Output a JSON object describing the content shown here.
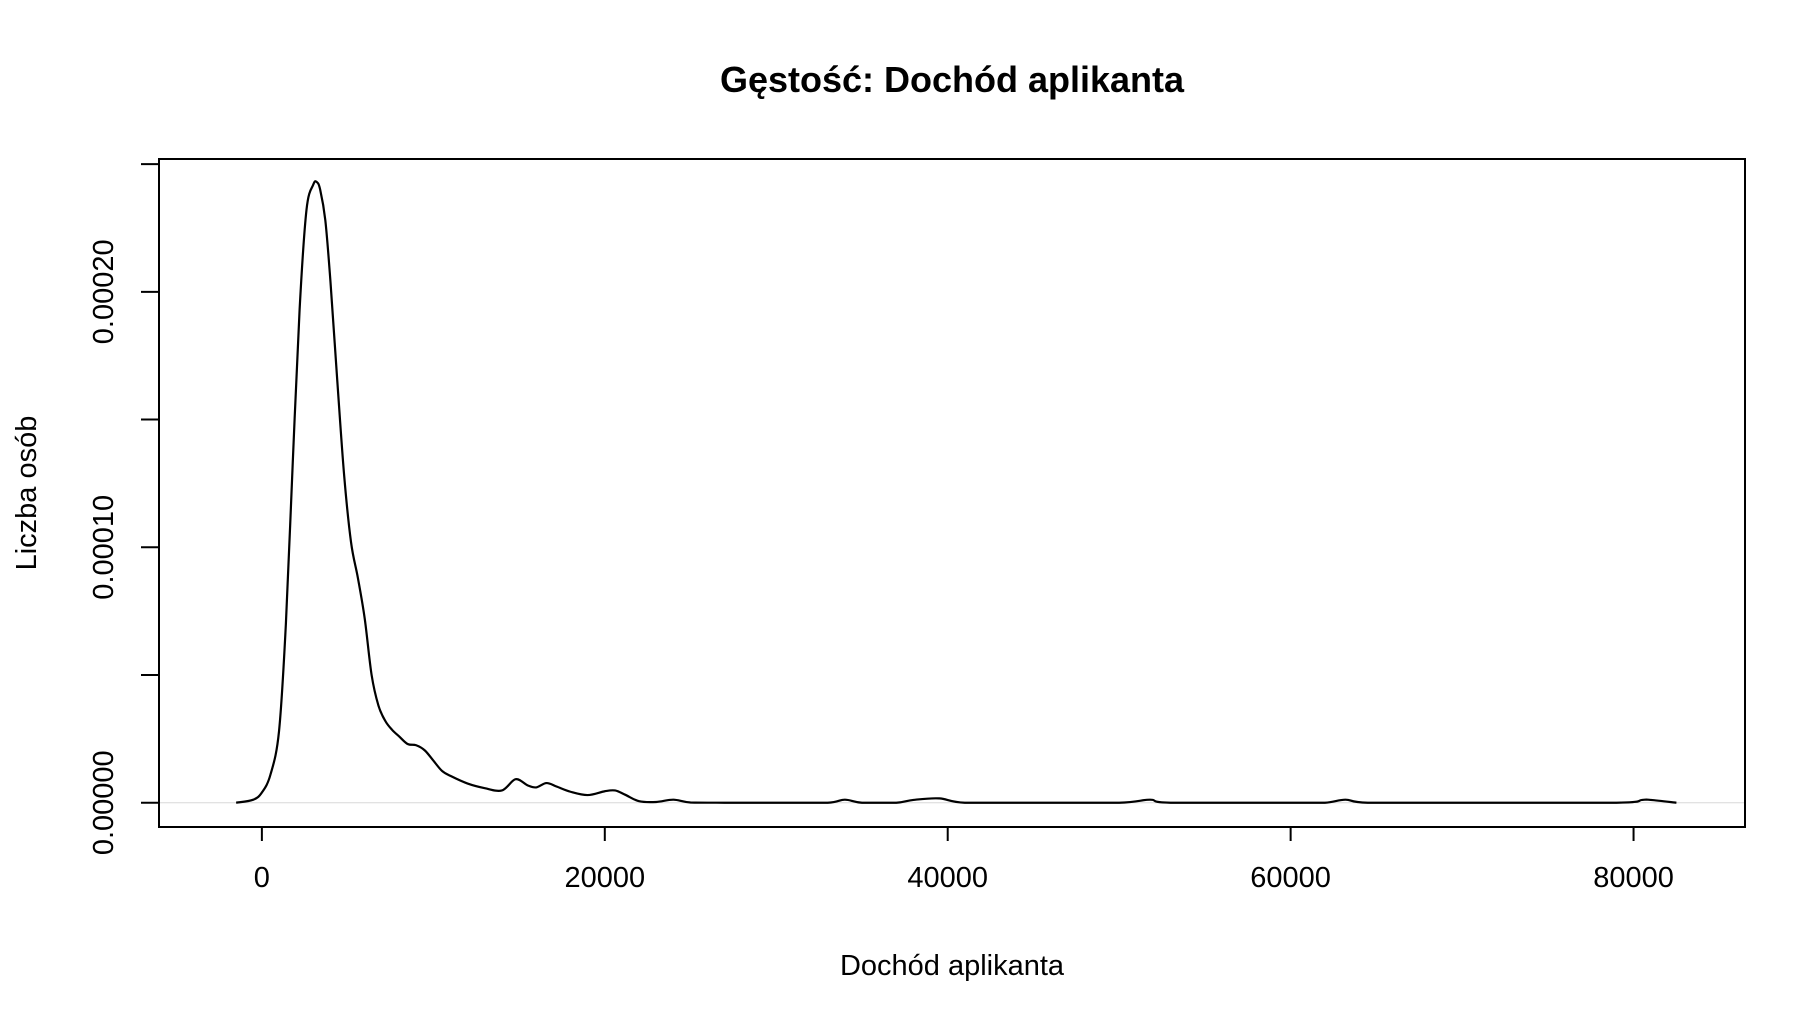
{
  "chart_data": {
    "type": "line",
    "title": "Gęstość:  Dochód aplikanta",
    "xlabel": "Dochód aplikanta",
    "ylabel": "Liczba osób",
    "xlim": [
      -6000,
      86500
    ],
    "ylim": [
      -9.5e-06,
      0.000252
    ],
    "x_ticks": [
      {
        "value": 0,
        "label": "0"
      },
      {
        "value": 20000,
        "label": "20000"
      },
      {
        "value": 40000,
        "label": "40000"
      },
      {
        "value": 60000,
        "label": "60000"
      },
      {
        "value": 80000,
        "label": "80000"
      }
    ],
    "y_ticks": [
      {
        "value": 0,
        "label": "0.00000"
      },
      {
        "value": 5e-05,
        "label": ""
      },
      {
        "value": 0.0001,
        "label": "0.00010"
      },
      {
        "value": 0.00015,
        "label": ""
      },
      {
        "value": 0.0002,
        "label": "0.00020"
      },
      {
        "value": 0.00025,
        "label": ""
      }
    ],
    "zero_reference_line": true,
    "grid": false,
    "series": [
      {
        "color": "#000000",
        "x": [
          -1500,
          -500,
          0,
          500,
          1000,
          1400,
          1800,
          2200,
          2600,
          3000,
          3200,
          3400,
          3700,
          4000,
          4400,
          4800,
          5200,
          5600,
          6000,
          6400,
          6800,
          7200,
          7600,
          8000,
          8500,
          9000,
          9500,
          10000,
          10500,
          11000,
          12000,
          13000,
          14000,
          14800,
          15500,
          16000,
          16600,
          17200,
          18000,
          19000,
          20000,
          20600,
          21200,
          22000,
          23000,
          24000,
          25000,
          27000,
          30000,
          33000,
          34000,
          35000,
          37000,
          38000,
          39500,
          41000,
          45000,
          50000,
          51800,
          53000,
          60000,
          62000,
          63200,
          64500,
          70000,
          79000,
          80500,
          81000,
          82500
        ],
        "y": [
          0,
          1.2e-06,
          4e-06,
          1.1e-05,
          2.8e-05,
          7e-05,
          0.000133,
          0.000193,
          0.000232,
          0.000242,
          0.000243,
          0.00024,
          0.000228,
          0.000204,
          0.000165,
          0.000128,
          0.000102,
          8.8e-05,
          7.2e-05,
          5e-05,
          3.8e-05,
          3.2e-05,
          2.85e-05,
          2.6e-05,
          2.3e-05,
          2.25e-05,
          2.05e-05,
          1.65e-05,
          1.25e-05,
          1.05e-05,
          7.5e-06,
          5.7e-06,
          4.8e-06,
          9.2e-06,
          6.8e-06,
          6e-06,
          7.7e-06,
          6.3e-06,
          4.3e-06,
          3e-06,
          4.5e-06,
          4.8e-06,
          3.1e-06,
          6e-07,
          3e-07,
          1.2e-06,
          1e-07,
          0,
          0,
          0,
          1.2e-06,
          0,
          0,
          1.1e-06,
          1.7e-06,
          0,
          0,
          0,
          1.2e-06,
          0,
          0,
          0,
          1.2e-06,
          0,
          0,
          0,
          1.1e-06,
          1.1e-06,
          0
        ]
      }
    ]
  }
}
